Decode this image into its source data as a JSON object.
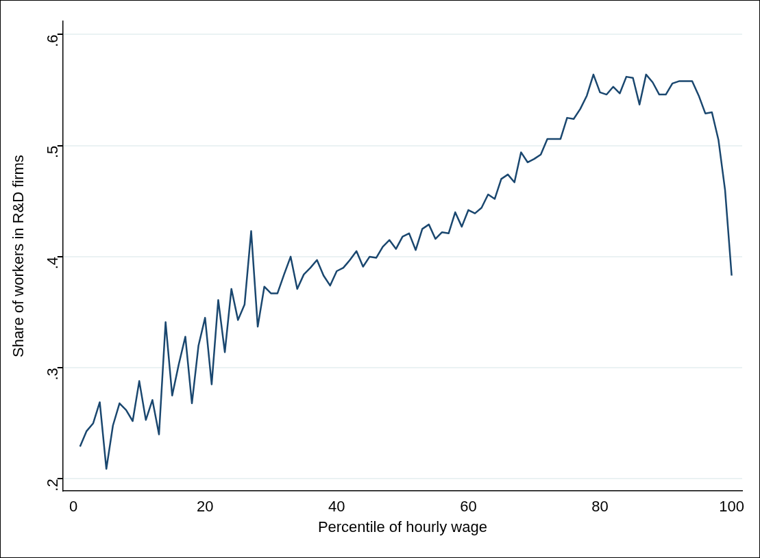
{
  "chart_data": {
    "type": "line",
    "xlabel": "Percentile of hourly wage",
    "ylabel": "Share of workers in R&D firms",
    "x": [
      1,
      2,
      3,
      4,
      5,
      6,
      7,
      8,
      9,
      10,
      11,
      12,
      13,
      14,
      15,
      16,
      17,
      18,
      19,
      20,
      21,
      22,
      23,
      24,
      25,
      26,
      27,
      28,
      29,
      30,
      31,
      32,
      33,
      34,
      35,
      36,
      37,
      38,
      39,
      40,
      41,
      42,
      43,
      44,
      45,
      46,
      47,
      48,
      49,
      50,
      51,
      52,
      53,
      54,
      55,
      56,
      57,
      58,
      59,
      60,
      61,
      62,
      63,
      64,
      65,
      66,
      67,
      68,
      69,
      70,
      71,
      72,
      73,
      74,
      75,
      76,
      77,
      78,
      79,
      80,
      81,
      82,
      83,
      84,
      85,
      86,
      87,
      88,
      89,
      90,
      91,
      92,
      93,
      94,
      95,
      96,
      97,
      98,
      99,
      100
    ],
    "series": [
      {
        "color": "#1a476f",
        "values": [
          0.229,
          0.243,
          0.25,
          0.269,
          0.209,
          0.248,
          0.268,
          0.262,
          0.252,
          0.288,
          0.253,
          0.271,
          0.24,
          0.341,
          0.275,
          0.303,
          0.328,
          0.268,
          0.32,
          0.345,
          0.285,
          0.361,
          0.314,
          0.371,
          0.343,
          0.357,
          0.423,
          0.337,
          0.373,
          0.367,
          0.367,
          0.384,
          0.4,
          0.371,
          0.384,
          0.39,
          0.397,
          0.383,
          0.374,
          0.387,
          0.39,
          0.397,
          0.405,
          0.391,
          0.4,
          0.399,
          0.409,
          0.415,
          0.407,
          0.418,
          0.421,
          0.406,
          0.425,
          0.429,
          0.416,
          0.422,
          0.421,
          0.44,
          0.427,
          0.442,
          0.439,
          0.444,
          0.456,
          0.452,
          0.47,
          0.474,
          0.467,
          0.494,
          0.485,
          0.488,
          0.492,
          0.506,
          0.506,
          0.506,
          0.525,
          0.524,
          0.533,
          0.545,
          0.564,
          0.548,
          0.546,
          0.553,
          0.547,
          0.562,
          0.561,
          0.537,
          0.564,
          0.557,
          0.546,
          0.546,
          0.556,
          0.558,
          0.558,
          0.558,
          0.545,
          0.529,
          0.53,
          0.505,
          0.46,
          0.383
        ]
      }
    ],
    "xlim": [
      -1.6,
      101.6
    ],
    "xticks": [
      0,
      20,
      40,
      60,
      80,
      100
    ],
    "ylim": [
      0.189,
      0.612
    ],
    "yticks": [
      {
        "value": 0.2,
        "label": ".2"
      },
      {
        "value": 0.3,
        "label": ".3"
      },
      {
        "value": 0.4,
        "label": ".4"
      },
      {
        "value": 0.5,
        "label": ".5"
      },
      {
        "value": 0.6,
        "label": ".6"
      }
    ],
    "grid": "y",
    "marker": "none",
    "line_style": "solid",
    "legend": false
  }
}
